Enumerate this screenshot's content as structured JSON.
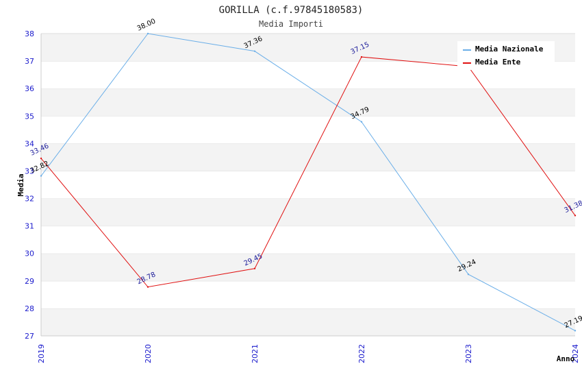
{
  "chart_data": {
    "type": "line",
    "title": "GORILLA (c.f.97845180583)",
    "subtitle": "Media Importi",
    "xlabel": "Anno",
    "ylabel": "Media",
    "categories": [
      "2019",
      "2020",
      "2021",
      "2022",
      "2023",
      "2024"
    ],
    "ylim": [
      27,
      38
    ],
    "yticks": [
      "27",
      "28",
      "29",
      "30",
      "31",
      "32",
      "33",
      "34",
      "35",
      "36",
      "37",
      "38"
    ],
    "grid": "horizontal bands",
    "legend_position": "top-right",
    "series": [
      {
        "name": "Media Nazionale",
        "color": "#6aaee8",
        "label_color": "#000000",
        "values": [
          32.82,
          38.0,
          37.36,
          34.79,
          29.24,
          27.19
        ],
        "labels": [
          "32.82",
          "38.00",
          "37.36",
          "34.79",
          "29.24",
          "27.19"
        ]
      },
      {
        "name": "Media Ente",
        "color": "#e01010",
        "label_color": "#1a1a99",
        "values": [
          33.46,
          28.78,
          29.45,
          37.15,
          36.8,
          31.38
        ],
        "labels": [
          "33.46",
          "28.78",
          "29.45",
          "37.15",
          "",
          "31.38"
        ]
      }
    ]
  }
}
